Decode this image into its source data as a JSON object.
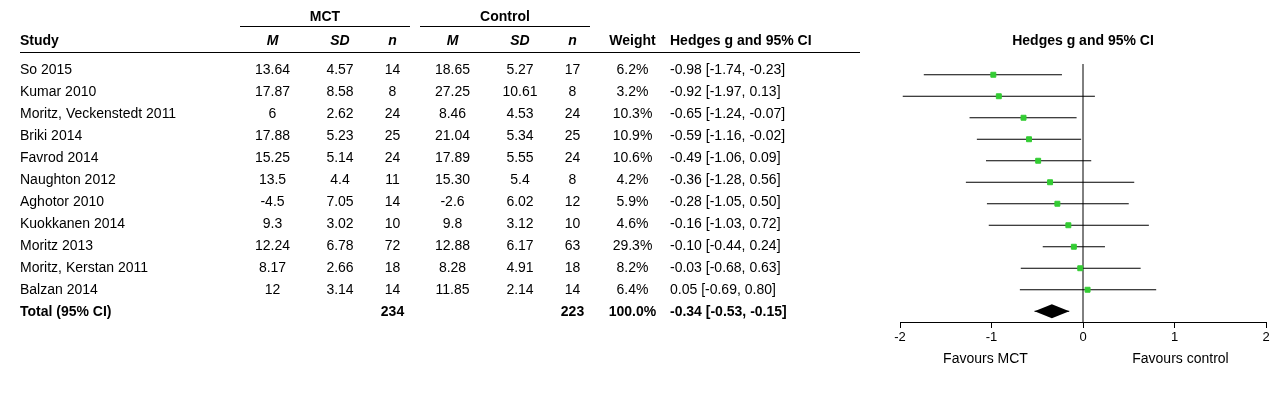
{
  "chart_data": [
    {
      "type": "other",
      "annotations": [
        "MCT",
        "Control",
        "Study",
        "M",
        "SD",
        "n",
        "M",
        "SD",
        "n",
        "Weight",
        "Hedges g and 95% CI",
        "So 2015",
        "13.64",
        "4.57",
        "14",
        "18.65",
        "5.27",
        "17",
        "6.2%",
        "-0.98 [-1.74, -0.23]",
        "Kumar 2010",
        "17.87",
        "8.58",
        "8",
        "27.25",
        "10.61",
        "8",
        "3.2%",
        "-0.92 [-1.97, 0.13]",
        "Moritz, Veckenstedt 2011",
        "6",
        "2.62",
        "24",
        "8.46",
        "4.53",
        "24",
        "10.3%",
        "-0.65 [-1.24, -0.07]",
        "Briki 2014",
        "17.88",
        "5.23",
        "25",
        "21.04",
        "5.34",
        "25",
        "10.9%",
        "-0.59 [-1.16, -0.02]",
        "Favrod 2014",
        "15.25",
        "5.14",
        "24",
        "17.89",
        "5.55",
        "24",
        "10.6%",
        "-0.49 [-1.06, 0.09]",
        "Naughton 2012",
        "13.5",
        "4.4",
        "11",
        "15.30",
        "5.4",
        "8",
        "4.2%",
        "-0.36 [-1.28, 0.56]",
        "Aghotor 2010",
        "-4.5",
        "7.05",
        "14",
        "-2.6",
        "6.02",
        "12",
        "5.9%",
        "-0.28 [-1.05, 0.50]",
        "Kuokkanen 2014",
        "9.3",
        "3.02",
        "10",
        "9.8",
        "3.12",
        "10",
        "4.6%",
        "-0.16 [-1.03, 0.72]",
        "Moritz 2013",
        "12.24",
        "6.78",
        "72",
        "12.88",
        "6.17",
        "63",
        "29.3%",
        "-0.10 [-0.44, 0.24]",
        "Moritz, Kerstan 2011",
        "8.17",
        "2.66",
        "18",
        "8.28",
        "4.91",
        "18",
        "8.2%",
        "-0.03 [-0.68, 0.63]",
        "Balzan 2014",
        "12",
        "3.14",
        "14",
        "11.85",
        "2.14",
        "14",
        "6.4%",
        "0.05 [-0.69, 0.80]",
        "Total (95% CI)",
        null,
        null,
        "234",
        null,
        null,
        "223",
        "100.0%",
        "-0.34 [-0.53, -0.15]"
      ]
    },
    {
      "type": "scatter",
      "title": "Hedges g and 95% CI",
      "orientation": "horizontal",
      "categories": [
        null,
        null,
        null,
        null,
        null,
        null,
        null,
        null,
        null,
        null,
        null,
        null
      ],
      "series": [
        {
          "color": "#33cc33",
          "marker": "square",
          "values": [
            -0.98,
            -0.92,
            -0.65,
            -0.59,
            -0.49,
            -0.36,
            -0.28,
            -0.16,
            -0.1,
            -0.03,
            0.05,
            null
          ],
          "errors": [
            [
              -1.74,
              -0.23
            ],
            [
              -1.97,
              0.13
            ],
            [
              -1.24,
              -0.07
            ],
            [
              -1.16,
              -0.02
            ],
            [
              -1.06,
              0.09
            ],
            [
              -1.28,
              0.56
            ],
            [
              -1.05,
              0.5
            ],
            [
              -1.03,
              0.72
            ],
            [
              -0.44,
              0.24
            ],
            [
              -0.68,
              0.63
            ],
            [
              -0.69,
              0.8
            ],
            null
          ]
        },
        {
          "color": "#000000",
          "marker": "diamond",
          "values": [
            null,
            null,
            null,
            null,
            null,
            null,
            null,
            null,
            null,
            null,
            null,
            -0.34
          ],
          "errors": [
            null,
            null,
            null,
            null,
            null,
            null,
            null,
            null,
            null,
            null,
            null,
            [
              -0.53,
              -0.15
            ]
          ]
        }
      ],
      "xlim": [
        -2,
        2
      ],
      "xticks": [
        -2,
        -1,
        0,
        1,
        2
      ],
      "ref_lines": [
        {
          "axis": "x",
          "value": 0,
          "color": "#000000"
        }
      ],
      "annotations": [
        "Favours MCT",
        "Favours control"
      ]
    }
  ]
}
